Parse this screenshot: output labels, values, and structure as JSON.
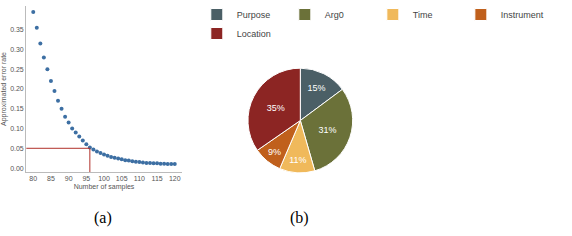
{
  "chart_data": [
    {
      "type": "scatter",
      "caption": "(a)",
      "x_label": "Number of samples",
      "y_label": "Approximated error rate",
      "x": [
        80,
        81,
        82,
        83,
        84,
        85,
        86,
        87,
        88,
        89,
        90,
        91,
        92,
        93,
        94,
        95,
        96,
        97,
        98,
        99,
        100,
        101,
        102,
        103,
        104,
        105,
        106,
        107,
        108,
        109,
        110,
        111,
        112,
        113,
        114,
        115,
        116,
        117,
        118,
        119,
        120
      ],
      "values": [
        0.395,
        0.355,
        0.315,
        0.28,
        0.25,
        0.22,
        0.195,
        0.17,
        0.15,
        0.13,
        0.115,
        0.1,
        0.09,
        0.08,
        0.07,
        0.06,
        0.052,
        0.047,
        0.042,
        0.038,
        0.034,
        0.031,
        0.028,
        0.026,
        0.024,
        0.022,
        0.02,
        0.019,
        0.017,
        0.016,
        0.015,
        0.014,
        0.013,
        0.013,
        0.012,
        0.012,
        0.011,
        0.011,
        0.01,
        0.01,
        0.01
      ],
      "color": "#3d6fa3",
      "marker": "circle",
      "xlim": [
        78,
        122
      ],
      "ylim": [
        -0.01,
        0.41
      ],
      "xticks": [
        80,
        85,
        90,
        95,
        100,
        105,
        110,
        115,
        120
      ],
      "yticks": [
        {
          "value": 0,
          "label": "0.00"
        },
        {
          "value": 0.05,
          "label": "0.05"
        },
        {
          "value": 0.1,
          "label": "0.10"
        },
        {
          "value": 0.15,
          "label": "0.15"
        },
        {
          "value": 0.2,
          "label": "0.20"
        },
        {
          "value": 0.25,
          "label": "0.25"
        },
        {
          "value": 0.3,
          "label": "0.30"
        },
        {
          "value": 0.35,
          "label": "0.35"
        }
      ],
      "threshold": {
        "x": 96,
        "y": 0.05,
        "color": "#b0302a"
      },
      "grid": false
    },
    {
      "type": "pie",
      "caption": "(b)",
      "categories": [
        "Purpose",
        "Arg0",
        "Time",
        "Instrument",
        "Location"
      ],
      "values": [
        15,
        31,
        11,
        9,
        35
      ],
      "value_labels": [
        "15%",
        "31%",
        "11%",
        "9%",
        "35%"
      ],
      "colors": [
        "#4b5f66",
        "#6b7139",
        "#f0b95b",
        "#c0601c",
        "#8c2523"
      ],
      "data_labels": true,
      "legend": "top"
    }
  ]
}
